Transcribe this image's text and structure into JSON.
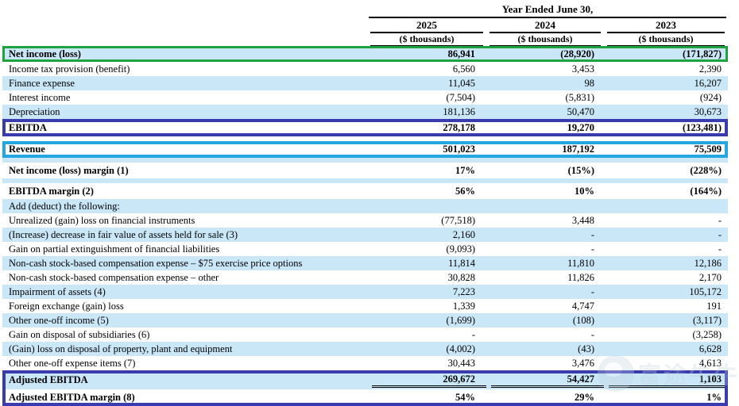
{
  "colors": {
    "highlight_green": "#1fa33e",
    "highlight_indigo": "#3a3cae",
    "highlight_cyan": "#24a7e0",
    "row_band": "#cae7f8"
  },
  "header": {
    "title": "Year Ended June 30,",
    "columns": [
      {
        "year": "2025",
        "unit": "($ thousands)"
      },
      {
        "year": "2024",
        "unit": "($ thousands)"
      },
      {
        "year": "2023",
        "unit": "($ thousands)"
      }
    ]
  },
  "watermark": {
    "text": "富途牛牛"
  },
  "rows": [
    {
      "label": "Net income (loss)",
      "values": [
        "86,941",
        "(28,920)",
        "(171,827)"
      ],
      "bold": true,
      "shaded": true,
      "highlight": "green"
    },
    {
      "label": "Income tax provision (benefit)",
      "values": [
        "6,560",
        "3,453",
        "2,390"
      ]
    },
    {
      "label": "Finance expense",
      "values": [
        "11,045",
        "98",
        "16,207"
      ],
      "shaded": true
    },
    {
      "label": "Interest income",
      "values": [
        "(7,504)",
        "(5,831)",
        "(924)"
      ]
    },
    {
      "label": "Depreciation",
      "values": [
        "181,136",
        "50,470",
        "30,673"
      ],
      "shaded": true
    },
    {
      "label": "EBITDA",
      "values": [
        "278,178",
        "19,270",
        "(123,481)"
      ],
      "bold": true,
      "highlight": "indigo",
      "rule_top": true,
      "rule_bottom": "single"
    },
    {
      "type": "spacer"
    },
    {
      "label": "Revenue",
      "values": [
        "501,023",
        "187,192",
        "75,509"
      ],
      "bold": true,
      "highlight": "cyan"
    },
    {
      "type": "spacer",
      "shaded": true
    },
    {
      "label": "Net income (loss) margin (1)",
      "values": [
        "17%",
        "(15%)",
        "(228%)"
      ],
      "bold": true,
      "tall": true
    },
    {
      "type": "spacer",
      "shaded": true
    },
    {
      "label": "EBITDA margin (2)",
      "values": [
        "56%",
        "10%",
        "(164%)"
      ],
      "bold": true,
      "tall": true
    },
    {
      "label": "Add (deduct) the following:",
      "values": [
        "",
        "",
        ""
      ],
      "shaded": true
    },
    {
      "label": "Unrealized (gain) loss on financial instruments",
      "values": [
        "(77,518)",
        "3,448",
        "-"
      ]
    },
    {
      "label": "(Increase) decrease in fair value of assets held for sale (3)",
      "values": [
        "2,160",
        "-",
        "-"
      ],
      "shaded": true
    },
    {
      "label": "Gain on partial extinguishment of financial liabilities",
      "values": [
        "(9,093)",
        "-",
        "-"
      ]
    },
    {
      "label": "Non-cash stock-based compensation expense – $75 exercise price options",
      "values": [
        "11,814",
        "11,810",
        "12,186"
      ],
      "shaded": true
    },
    {
      "label": "Non-cash stock-based compensation expense – other",
      "values": [
        "30,828",
        "11,826",
        "2,170"
      ]
    },
    {
      "label": "Impairment of assets (4)",
      "values": [
        "7,223",
        "-",
        "105,172"
      ],
      "shaded": true
    },
    {
      "label": "Foreign exchange (gain) loss",
      "values": [
        "1,339",
        "4,747",
        "191"
      ]
    },
    {
      "label": "Other one-off income (5)",
      "values": [
        "(1,699)",
        "(108)",
        "(3,117)"
      ],
      "shaded": true
    },
    {
      "label": "Gain on disposal of subsidiaries (6)",
      "values": [
        "-",
        "-",
        "(3,258)"
      ]
    },
    {
      "label": "(Gain) loss on disposal of property, plant and equipment",
      "values": [
        "(4,002)",
        "(43)",
        "6,628"
      ],
      "shaded": true
    },
    {
      "label": "Other one-off expense items (7)",
      "values": [
        "30,443",
        "3,476",
        "4,613"
      ]
    },
    {
      "label": "Adjusted EBITDA",
      "values": [
        "269,672",
        "54,427",
        "1,103"
      ],
      "bold": true,
      "shaded": true,
      "group": "adjusted",
      "variant": "adj-main",
      "rule_top": true,
      "rule_bottom": "double"
    },
    {
      "label": "Adjusted EBITDA margin (8)",
      "values": [
        "54%",
        "29%",
        "1%"
      ],
      "bold": true,
      "group": "adjusted",
      "variant": "adj-margin"
    }
  ]
}
